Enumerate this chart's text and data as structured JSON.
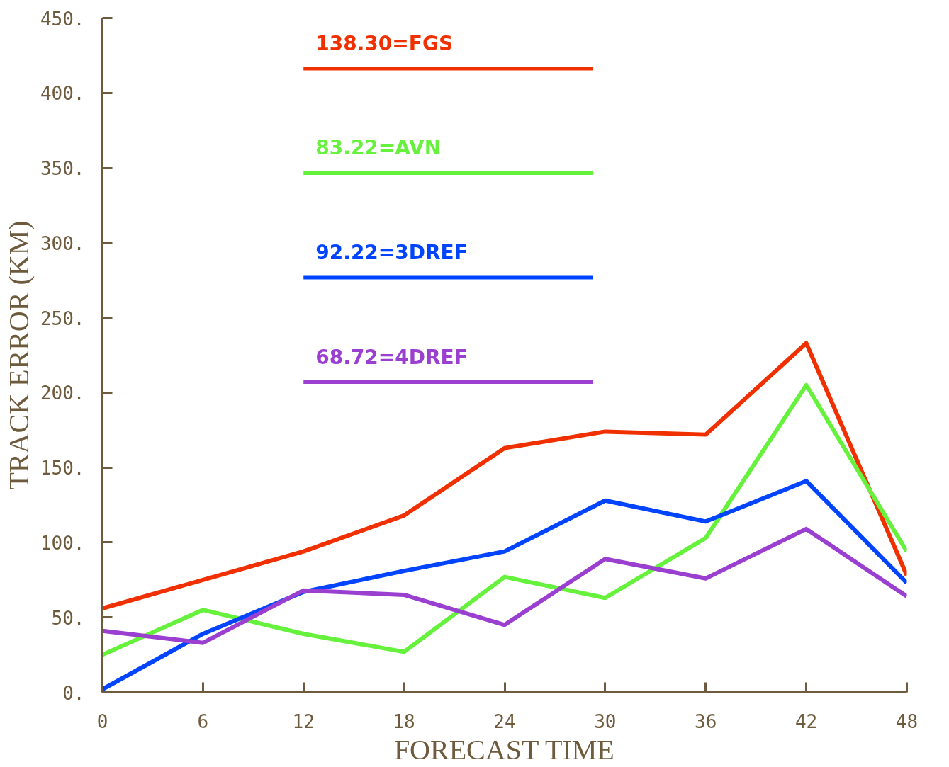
{
  "chart_data": {
    "type": "line",
    "xlabel": "FORECAST TIME",
    "ylabel": "TRACK ERROR (KM)",
    "x": [
      0,
      6,
      12,
      18,
      24,
      30,
      36,
      42,
      48
    ],
    "series": [
      {
        "name": "138.30=FGS",
        "color": "#f03000",
        "values": [
          56,
          75,
          94,
          118,
          163,
          174,
          172,
          233,
          78
        ]
      },
      {
        "name": "83.22=AVN",
        "color": "#66f23c",
        "values": [
          25,
          55,
          39,
          27,
          77,
          63,
          103,
          205,
          94
        ]
      },
      {
        "name": "92.22=3DREF",
        "color": "#0044ff",
        "values": [
          2,
          39,
          67,
          81,
          94,
          128,
          114,
          141,
          73
        ]
      },
      {
        "name": "68.72=4DREF",
        "color": "#9b3fd0",
        "values": [
          41,
          33,
          68,
          65,
          45,
          89,
          76,
          109,
          64
        ]
      }
    ],
    "xlim": [
      0,
      48
    ],
    "ylim": [
      0,
      450
    ],
    "xticks": [
      0,
      6,
      12,
      18,
      24,
      30,
      36,
      42,
      48
    ],
    "yticks": [
      {
        "value": 0,
        "label": "0."
      },
      {
        "value": 50,
        "label": "50."
      },
      {
        "value": 100,
        "label": "100."
      },
      {
        "value": 150,
        "label": "150."
      },
      {
        "value": 200,
        "label": "200."
      },
      {
        "value": 250,
        "label": "250."
      },
      {
        "value": 300,
        "label": "300."
      },
      {
        "value": 350,
        "label": "350."
      },
      {
        "value": 400,
        "label": "400."
      },
      {
        "value": 450,
        "label": "450."
      }
    ],
    "grid": false,
    "legend": "top",
    "marker": "none",
    "line_style": "solid"
  }
}
